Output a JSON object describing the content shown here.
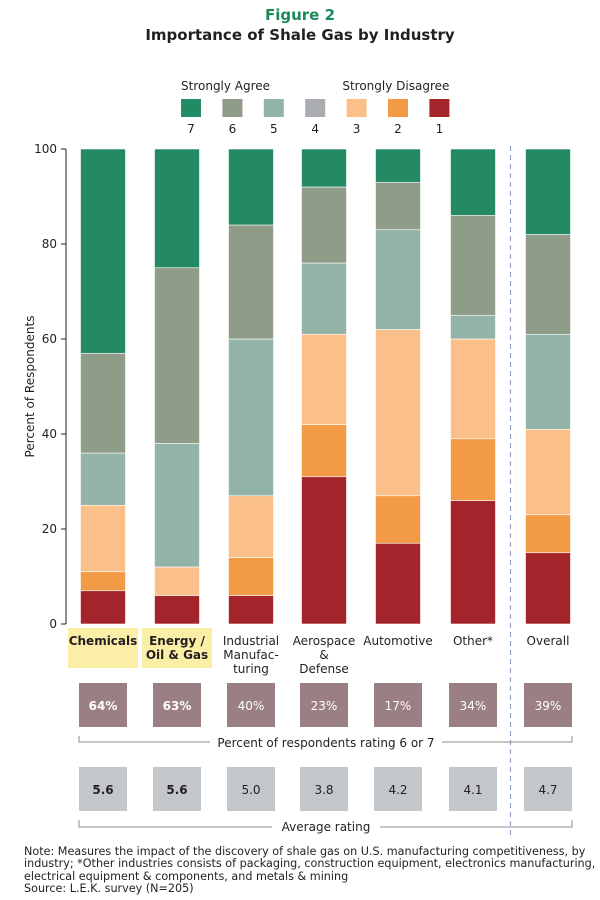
{
  "figure_label": "Figure 2",
  "title": "Importance of Shale Gas by Industry",
  "chart_data": {
    "type": "bar",
    "stacked": true,
    "percent": true,
    "ylabel": "Percent of Respondents",
    "ylim": [
      0,
      100
    ],
    "yticks": [
      0,
      20,
      40,
      60,
      80,
      100
    ],
    "legend": {
      "position": "top",
      "left_caption": "Strongly Agree",
      "right_caption": "Strongly Disagree"
    },
    "categories": [
      {
        "label": [
          "Chemicals"
        ],
        "highlight": true
      },
      {
        "label": [
          "Energy /",
          "Oil & Gas"
        ],
        "highlight": true
      },
      {
        "label": [
          "Industrial",
          "Manufac-",
          "turing"
        ],
        "highlight": false
      },
      {
        "label": [
          "Aerospace",
          "&",
          "Defense"
        ],
        "highlight": false
      },
      {
        "label": [
          "Automotive"
        ],
        "highlight": false
      },
      {
        "label": [
          "Other*"
        ],
        "highlight": false
      },
      {
        "label": [
          "Overall"
        ],
        "highlight": false
      }
    ],
    "series": [
      {
        "name": "1",
        "color": "#a3242a",
        "values": [
          7,
          6,
          6,
          31,
          17,
          26,
          15
        ]
      },
      {
        "name": "2",
        "color": "#f39a47",
        "values": [
          4,
          0,
          8,
          11,
          10,
          13,
          8
        ]
      },
      {
        "name": "3",
        "color": "#fbbf89",
        "values": [
          14,
          6,
          13,
          19,
          35,
          21,
          18
        ]
      },
      {
        "name": "4",
        "color": "#a9acb0",
        "values": [
          0,
          0,
          0,
          0,
          0,
          0,
          0
        ]
      },
      {
        "name": "5",
        "color": "#93b3a8",
        "values": [
          11,
          26,
          33,
          15,
          21,
          5,
          20
        ]
      },
      {
        "name": "6",
        "color": "#8f9d88",
        "values": [
          21,
          37,
          24,
          16,
          10,
          21,
          21
        ]
      },
      {
        "name": "7",
        "color": "#238a63",
        "values": [
          43,
          25,
          16,
          8,
          7,
          14,
          18
        ]
      }
    ],
    "separator_after_index": 5,
    "top_box": {
      "caption": "Percent of respondents rating 6 or 7",
      "values": [
        "64%",
        "63%",
        "40%",
        "23%",
        "17%",
        "34%",
        "39%"
      ],
      "color": "#9a8083"
    },
    "average": {
      "caption": "Average rating",
      "values": [
        "5.6",
        "5.6",
        "5.0",
        "3.8",
        "4.2",
        "4.1",
        "4.7"
      ],
      "bold": [
        true,
        true,
        false,
        false,
        false,
        false,
        false
      ],
      "color": "#c3c7cc"
    }
  },
  "note": [
    "Note: Measures the impact of the discovery of shale gas on U.S. manufacturing competitiveness, by",
    "industry; *Other industries consists of packaging, construction equipment, electronics manufacturing,",
    "electrical equipment & components, and metals & mining",
    "Source: L.E.K. survey (N=205)"
  ]
}
